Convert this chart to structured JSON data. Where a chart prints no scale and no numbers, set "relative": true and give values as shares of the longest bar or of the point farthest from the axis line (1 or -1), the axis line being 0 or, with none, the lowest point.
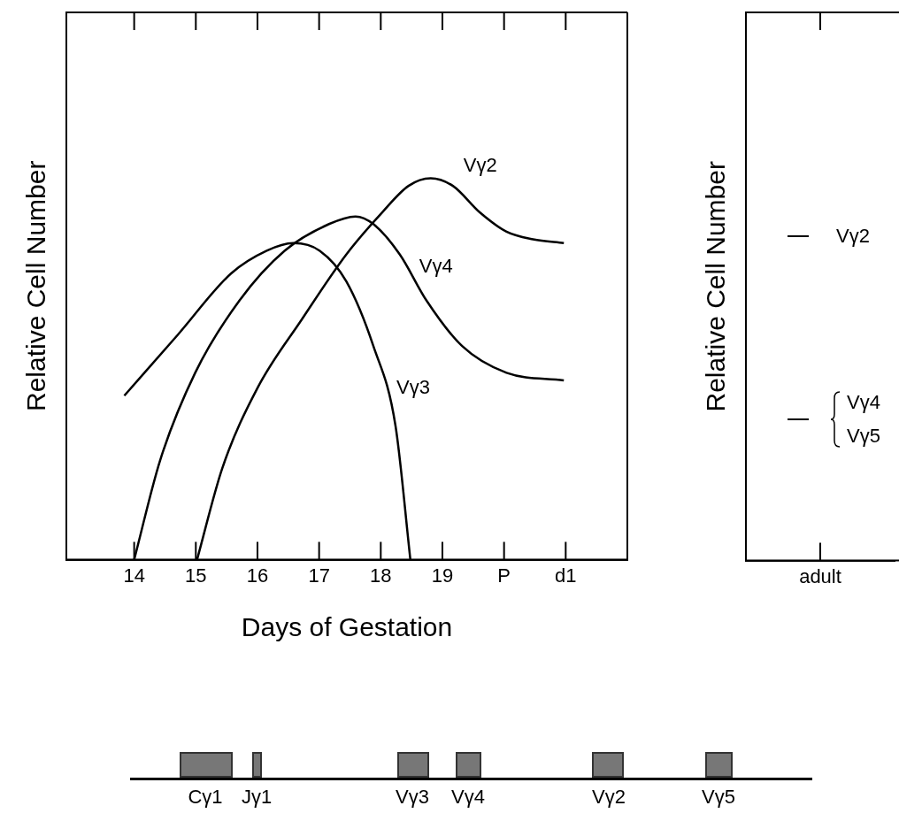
{
  "chart_data": [
    {
      "type": "line",
      "xlabel": "Days of Gestation",
      "ylabel": "Relative Cell Number",
      "relative": true,
      "xlim": [
        12.9,
        22.0
      ],
      "xticks": [
        14,
        15,
        16,
        17,
        18,
        19,
        {
          "value": 20,
          "label": "P"
        },
        {
          "value": 21,
          "label": "d1"
        }
      ],
      "grid": false,
      "legend": false,
      "marker": "none",
      "line_style": "solid",
      "series": [
        {
          "name": "Vγ2",
          "color": "#000000",
          "x": [
            15.02,
            15.43,
            16.0,
            16.72,
            17.44,
            18.02,
            18.45,
            18.81,
            19.17,
            19.61,
            20.04,
            20.47,
            20.97
          ],
          "values": [
            0,
            0.24,
            0.45,
            0.63,
            0.8,
            0.91,
            0.98,
            1,
            0.98,
            0.91,
            0.86,
            0.84,
            0.83
          ]
        },
        {
          "name": "Vγ4",
          "color": "#000000",
          "x": [
            14.0,
            14.42,
            14.99,
            15.71,
            16.44,
            17.16,
            17.59,
            17.88,
            18.31,
            18.74,
            19.32,
            20.04,
            20.97
          ],
          "values": [
            0,
            0.26,
            0.49,
            0.68,
            0.81,
            0.88,
            0.9,
            0.88,
            0.8,
            0.68,
            0.56,
            0.49,
            0.47
          ]
        },
        {
          "name": "Vγ3",
          "color": "#000000",
          "x": [
            13.84,
            14.71,
            15.57,
            16.15,
            16.58,
            17.01,
            17.44,
            17.88,
            18.24,
            18.48
          ],
          "values": [
            0.43,
            0.59,
            0.75,
            0.81,
            0.83,
            0.81,
            0.73,
            0.56,
            0.35,
            0
          ]
        }
      ]
    },
    {
      "type": "other",
      "ylabel": "Relative Cell Number",
      "categories": [
        "adult"
      ],
      "annotations": [
        "Vγ2",
        "Vγ4",
        "Vγ5"
      ]
    },
    {
      "type": "other",
      "annotations": [
        "Cγ1",
        "Jγ1",
        "Vγ3",
        "Vγ4",
        "Vγ2",
        "Vγ5"
      ]
    }
  ]
}
